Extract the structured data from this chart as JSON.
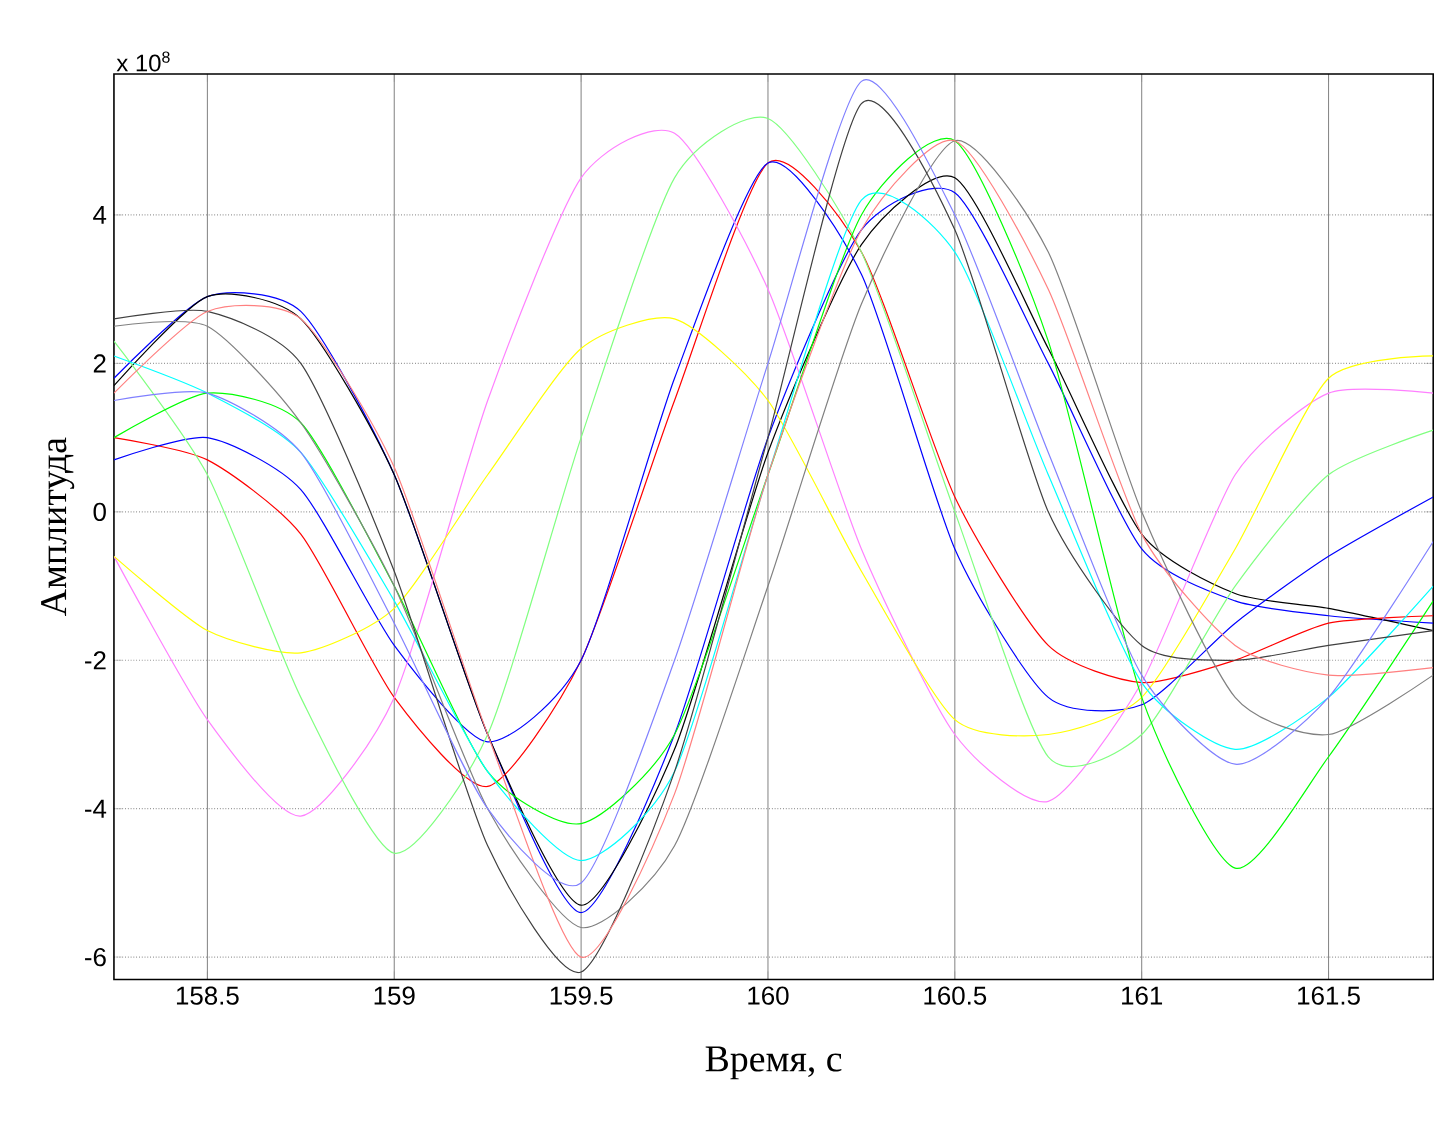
{
  "chart_data": {
    "type": "line",
    "xlabel": "Время, с",
    "ylabel": "Амплитуда",
    "annotations": [
      "x 10$^{8}$"
    ],
    "x": [
      158.25,
      158.5,
      158.75,
      159,
      159.25,
      159.5,
      159.75,
      160,
      160.25,
      160.5,
      160.75,
      161,
      161.25,
      161.5,
      161.78
    ],
    "xlim": [
      158.25,
      161.78
    ],
    "xticks": [
      158.5,
      159,
      159.5,
      160,
      160.5,
      161,
      161.5
    ],
    "ylim": [
      -6.3,
      5.9
    ],
    "yticks": [
      -6,
      -4,
      -2,
      0,
      2,
      4
    ],
    "grid": true,
    "marker": "none",
    "line_style": "solid",
    "series": [
      {
        "color": "#0000ff",
        "values": [
          1.8,
          2.9,
          2.7,
          0.5,
          -3.0,
          -5.4,
          -3.0,
          1.0,
          3.8,
          4.3,
          2.0,
          -0.5,
          -1.2,
          -1.4,
          -1.5
        ]
      },
      {
        "color": "#000000",
        "values": [
          1.7,
          2.9,
          2.6,
          0.5,
          -3.0,
          -5.3,
          -3.2,
          0.8,
          3.6,
          4.5,
          2.2,
          -0.3,
          -1.1,
          -1.3,
          -1.6
        ]
      },
      {
        "color": "#ff0000",
        "values": [
          1.0,
          0.7,
          -0.3,
          -2.5,
          -3.7,
          -2.0,
          1.5,
          4.7,
          3.5,
          0.2,
          -1.8,
          -2.3,
          -2.0,
          -1.5,
          -1.4
        ]
      },
      {
        "color": "#0000ff",
        "values": [
          0.7,
          1.0,
          0.3,
          -1.8,
          -3.1,
          -2.0,
          1.8,
          4.7,
          3.2,
          -0.5,
          -2.5,
          -2.6,
          -1.5,
          -0.6,
          0.2
        ]
      },
      {
        "color": "#ff80ff",
        "values": [
          -0.6,
          -2.8,
          -4.1,
          -2.5,
          1.5,
          4.5,
          5.1,
          3.0,
          -0.5,
          -3.0,
          -3.9,
          -2.3,
          0.5,
          1.6,
          1.6
        ]
      },
      {
        "color": "#ffff00",
        "values": [
          -0.6,
          -1.6,
          -1.9,
          -1.3,
          0.5,
          2.2,
          2.6,
          1.5,
          -0.8,
          -2.8,
          -3.0,
          -2.5,
          -0.5,
          1.8,
          2.1
        ]
      },
      {
        "color": "#80ff80",
        "values": [
          2.3,
          0.5,
          -2.5,
          -4.6,
          -3.0,
          1.0,
          4.5,
          5.3,
          3.5,
          0.0,
          -3.3,
          -3.0,
          -1.0,
          0.5,
          1.1
        ]
      },
      {
        "color": "#00ff00",
        "values": [
          1.0,
          1.6,
          1.2,
          -1.0,
          -3.5,
          -4.2,
          -3.0,
          0.5,
          4.0,
          5.0,
          2.3,
          -2.5,
          -4.8,
          -3.3,
          -1.2
        ]
      },
      {
        "color": "#00ffff",
        "values": [
          2.1,
          1.6,
          0.8,
          -1.2,
          -3.5,
          -4.7,
          -3.5,
          0.5,
          4.2,
          3.5,
          0.5,
          -2.3,
          -3.2,
          -2.5,
          -1.0
        ]
      },
      {
        "color": "#808080",
        "values": [
          2.5,
          2.5,
          1.2,
          -1.0,
          -4.0,
          -5.6,
          -4.5,
          -1.0,
          2.8,
          5.0,
          3.5,
          0.0,
          -2.5,
          -3.0,
          -2.2
        ]
      },
      {
        "color": "#404040",
        "values": [
          2.6,
          2.7,
          2.0,
          -0.8,
          -4.5,
          -6.2,
          -3.5,
          1.0,
          5.5,
          3.8,
          0.0,
          -1.8,
          -2.0,
          -1.8,
          -1.6
        ]
      },
      {
        "color": "#ff8080",
        "values": [
          1.6,
          2.7,
          2.6,
          0.6,
          -3.0,
          -6.0,
          -3.8,
          0.5,
          3.8,
          5.0,
          3.0,
          -0.3,
          -1.8,
          -2.2,
          -2.1
        ]
      },
      {
        "color": "#8080ff",
        "values": [
          1.5,
          1.6,
          0.8,
          -1.5,
          -4.0,
          -5.0,
          -2.0,
          2.0,
          5.8,
          4.0,
          0.8,
          -2.2,
          -3.4,
          -2.5,
          -0.4
        ]
      }
    ]
  }
}
